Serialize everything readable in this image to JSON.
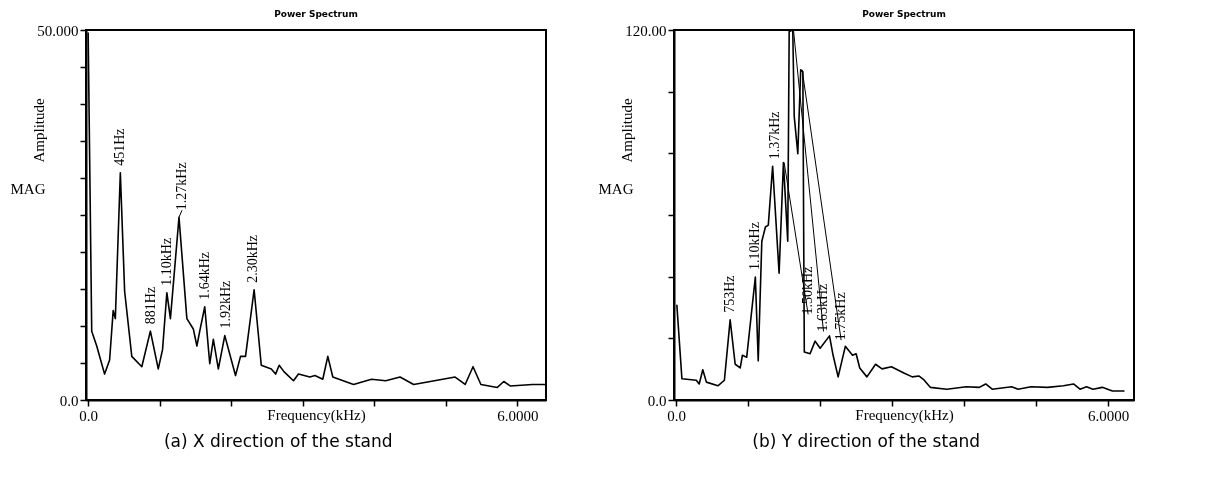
{
  "chart_data": [
    {
      "type": "line",
      "title": "Power Spectrum",
      "xlabel": "Frequency(kHz)",
      "ylabel": "Amplitude",
      "color": "#000000",
      "grid": false,
      "x": [
        0,
        0.05,
        0.12,
        0.23,
        0.3,
        0.35,
        0.38,
        0.45,
        0.51,
        0.61,
        0.75,
        0.87,
        0.98,
        1.04,
        1.1,
        1.15,
        1.27,
        1.38,
        1.47,
        1.52,
        1.56,
        1.63,
        1.7,
        1.75,
        1.82,
        1.91,
        2.06,
        2.13,
        2.2,
        2.32,
        2.42,
        2.56,
        2.62,
        2.67,
        2.74,
        2.87,
        2.94,
        3.1,
        3.17,
        3.28,
        3.35,
        3.42,
        3.71,
        3.96,
        4.16,
        4.36,
        4.55,
        5.13,
        5.27,
        5.38,
        5.49,
        5.72,
        5.81,
        5.9,
        6.21,
        6.4
      ],
      "values": [
        49.6,
        9.3,
        7.3,
        3.5,
        5.4,
        12.1,
        11.0,
        30.7,
        14.7,
        5.9,
        4.5,
        9.3,
        4.2,
        6.8,
        14.5,
        11.0,
        24.7,
        11.0,
        9.6,
        7.3,
        9.3,
        12.6,
        4.9,
        8.2,
        4.2,
        8.7,
        3.3,
        5.9,
        5.9,
        14.9,
        4.7,
        4.2,
        3.5,
        4.7,
        3.8,
        2.6,
        3.5,
        3.1,
        3.3,
        2.8,
        5.9,
        3.1,
        2.1,
        2.8,
        2.6,
        3.1,
        2.1,
        3.1,
        2.1,
        4.5,
        2.1,
        1.7,
        2.5,
        1.9,
        2.1,
        2.1
      ],
      "xlim": [
        -0.03,
        6.4
      ],
      "xticks": [
        {
          "value": 0,
          "label": "0.0"
        },
        {
          "value": 1,
          "label": null
        },
        {
          "value": 2,
          "label": null
        },
        {
          "value": 3,
          "label": null
        },
        {
          "value": 4,
          "label": null
        },
        {
          "value": 5,
          "label": null
        },
        {
          "value": 6,
          "label": "6.0000"
        }
      ],
      "ylim": [
        0,
        50
      ],
      "yticks": [
        {
          "value": 0,
          "label": "0.0"
        },
        {
          "value": 5,
          "label": null
        },
        {
          "value": 10,
          "label": null
        },
        {
          "value": 15,
          "label": null
        },
        {
          "value": 20,
          "label": null
        },
        {
          "value": 25,
          "label": null
        },
        {
          "value": 30,
          "label": null
        },
        {
          "value": 35,
          "label": null
        },
        {
          "value": 40,
          "label": null
        },
        {
          "value": 45,
          "label": null
        },
        {
          "value": 50,
          "label": "50.000"
        }
      ],
      "annotations": [
        "MAG",
        "(a) X direction of the stand",
        {
          "text": "451Hz",
          "x": 0.451,
          "y": 30.7
        },
        {
          "text": "881Hz",
          "x": 0.881,
          "y": 9.3
        },
        {
          "text": "1.10kHz",
          "x": 1.1,
          "y": 14.5
        },
        {
          "text": "1.27kHz",
          "x": 1.27,
          "y": 24.7
        },
        {
          "text": "1.64kHz",
          "x": 1.64,
          "y": 12.6
        },
        {
          "text": "1.92kHz",
          "x": 1.92,
          "y": 8.7
        },
        {
          "text": "2.30kHz",
          "x": 2.3,
          "y": 14.9
        }
      ]
    },
    {
      "type": "line",
      "title": "Power Spectrum",
      "xlabel": "Frequency(kHz)",
      "ylabel": "Amplitude",
      "color": "#000000",
      "grid": false,
      "x": [
        0.01,
        0.08,
        0.28,
        0.32,
        0.37,
        0.42,
        0.58,
        0.67,
        0.75,
        0.82,
        0.89,
        0.92,
        0.98,
        1.1,
        1.14,
        1.19,
        1.24,
        1.28,
        1.34,
        1.43,
        1.49,
        1.55,
        1.57,
        1.62,
        1.64,
        1.69,
        1.73,
        1.76,
        1.78,
        1.86,
        1.93,
        2.0,
        2.13,
        2.18,
        2.25,
        2.35,
        2.45,
        2.5,
        2.55,
        2.65,
        2.77,
        2.86,
        2.99,
        3.17,
        3.28,
        3.37,
        3.44,
        3.53,
        3.76,
        4.03,
        4.21,
        4.3,
        4.39,
        4.66,
        4.75,
        4.93,
        5.16,
        5.38,
        5.52,
        5.61,
        5.7,
        5.79,
        5.92,
        6.06,
        6.22
      ],
      "values": [
        30.7,
        6.9,
        6.4,
        5.2,
        9.8,
        5.8,
        4.6,
        6.4,
        26.0,
        11.6,
        10.4,
        14.5,
        13.9,
        39.9,
        12.7,
        51.5,
        56.1,
        56.7,
        75.8,
        41.1,
        77.0,
        51.5,
        119.5,
        120,
        92.0,
        79.9,
        107.1,
        106.5,
        15.6,
        15.0,
        19.1,
        16.8,
        20.8,
        14.5,
        7.5,
        17.4,
        14.5,
        15.0,
        10.4,
        7.5,
        11.6,
        10.1,
        10.8,
        8.7,
        7.5,
        7.8,
        6.6,
        4.1,
        3.5,
        4.3,
        4.1,
        5.2,
        3.5,
        4.3,
        3.5,
        4.3,
        4.1,
        4.6,
        5.2,
        3.5,
        4.3,
        3.5,
        4.1,
        2.9,
        2.9
      ],
      "xlim": [
        -0.03,
        6.36
      ],
      "xticks": [
        {
          "value": 0,
          "label": "0.0"
        },
        {
          "value": 1,
          "label": null
        },
        {
          "value": 2,
          "label": null
        },
        {
          "value": 3,
          "label": null
        },
        {
          "value": 4,
          "label": null
        },
        {
          "value": 5,
          "label": null
        },
        {
          "value": 6,
          "label": "6.0000"
        }
      ],
      "ylim": [
        0,
        120
      ],
      "yticks": [
        {
          "value": 0,
          "label": "0.0"
        },
        {
          "value": 20,
          "label": null
        },
        {
          "value": 40,
          "label": null
        },
        {
          "value": 60,
          "label": null
        },
        {
          "value": 80,
          "label": null
        },
        {
          "value": 100,
          "label": null
        },
        {
          "value": 120,
          "label": "120.00"
        }
      ],
      "annotations": [
        "MAG",
        "(b) Y direction of the stand",
        {
          "text": "753Hz",
          "x": 0.753,
          "y": 26.0
        },
        {
          "text": "1.10kHz",
          "x": 1.1,
          "y": 39.9
        },
        {
          "text": "1.37kHz",
          "x": 1.37,
          "y": 75.8
        },
        {
          "text": "1.50kHz",
          "x": 1.5,
          "y": 77.0
        },
        {
          "text": "1.63kHz",
          "x": 1.63,
          "y": 120
        },
        {
          "text": "1.75kHz",
          "x": 1.75,
          "y": 107.1
        }
      ]
    }
  ]
}
